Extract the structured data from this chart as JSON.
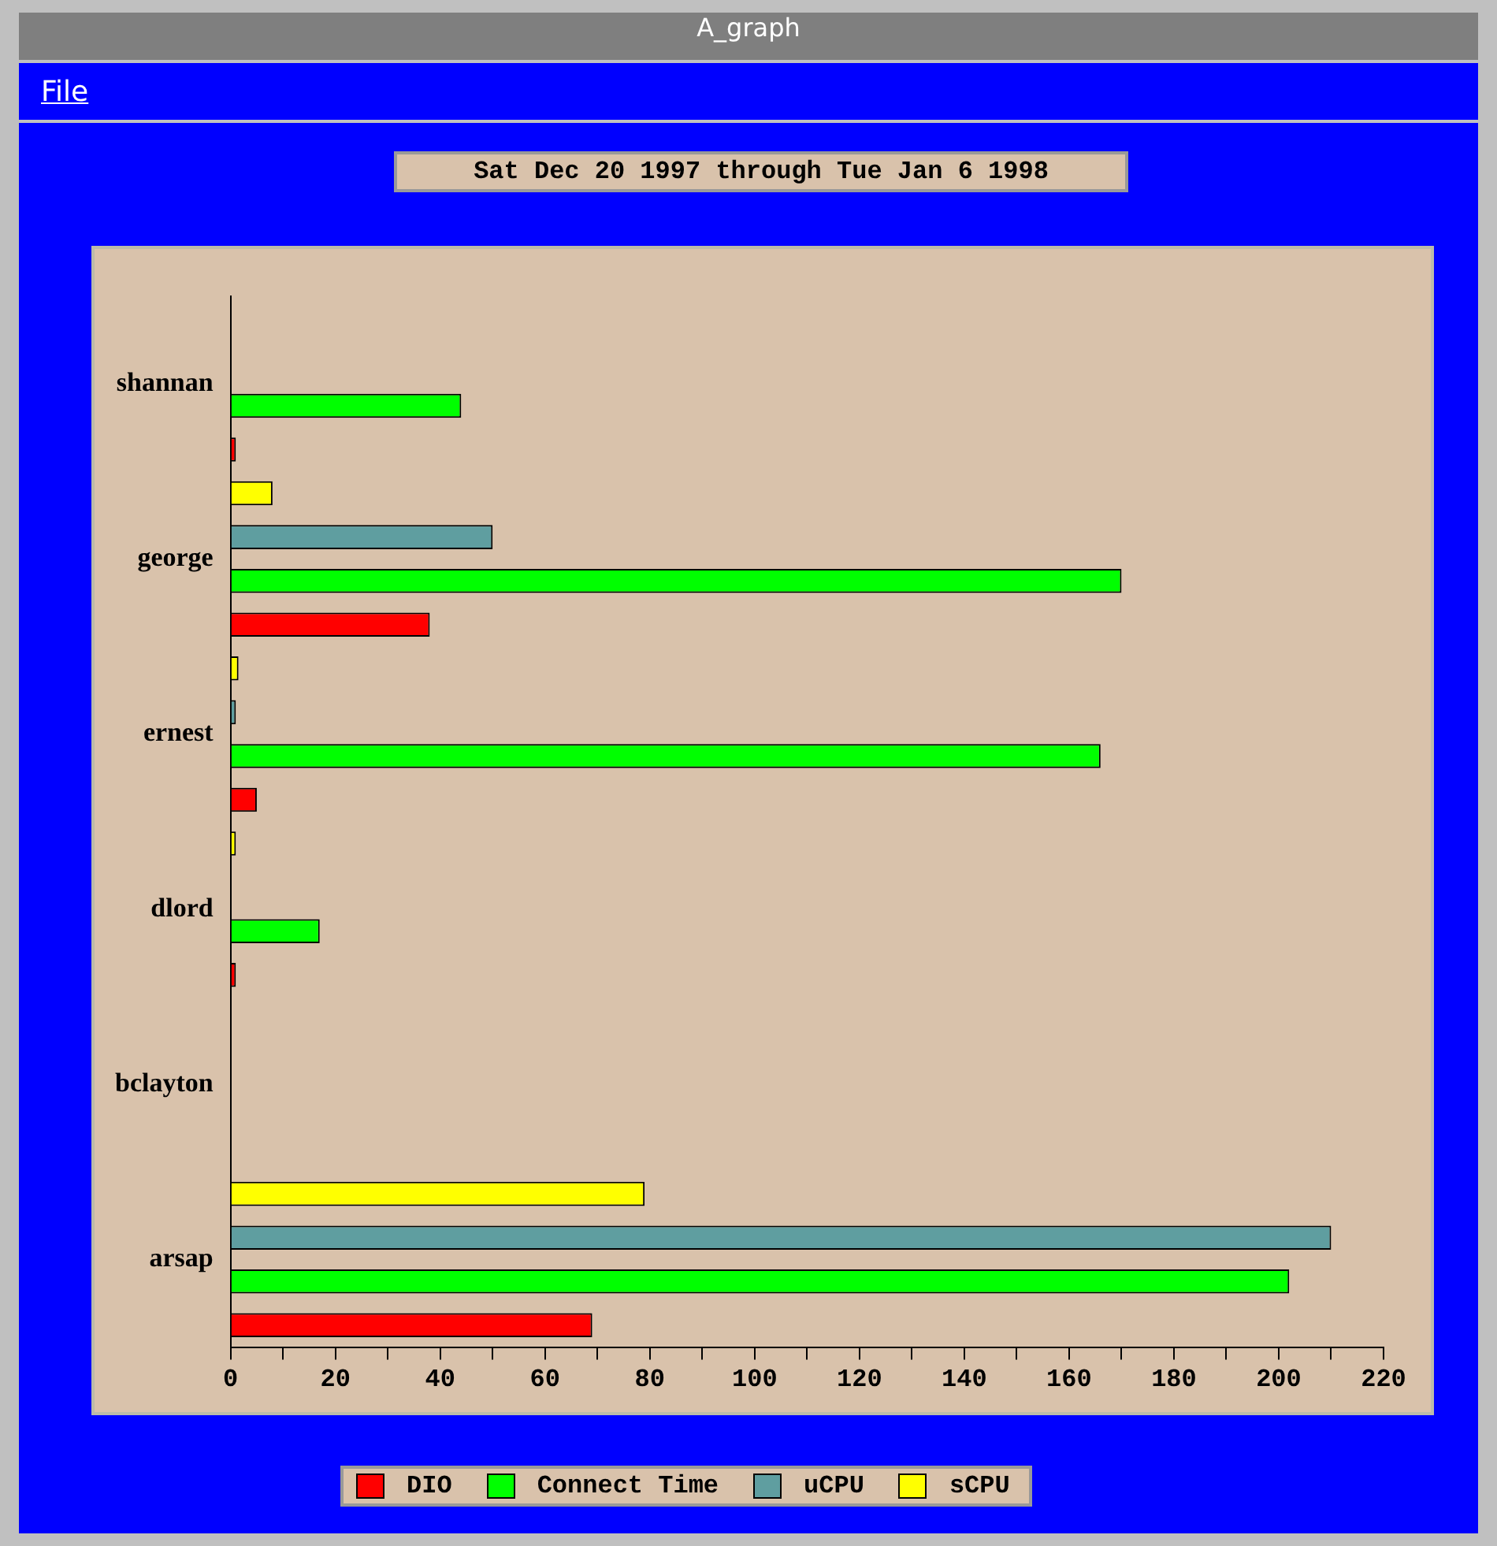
{
  "chart_data": {
    "type": "bar",
    "orientation": "horizontal",
    "title": "Sat Dec 20 1997 through Tue Jan  6 1998",
    "annotations": [
      "A_graph",
      "File"
    ],
    "categories": [
      "shannan",
      "george",
      "ernest",
      "dlord",
      "bclayton",
      "arsap"
    ],
    "series": [
      {
        "name": "DIO",
        "color": "#ff0000",
        "values": [
          1,
          38,
          5,
          1,
          0,
          69
        ]
      },
      {
        "name": "Connect Time",
        "color": "#00ff00",
        "values": [
          44,
          170,
          166,
          17,
          0,
          202
        ]
      },
      {
        "name": "uCPU",
        "color": "#5f9ea0",
        "values": [
          0,
          50,
          1,
          0,
          0,
          210
        ]
      },
      {
        "name": "sCPU",
        "color": "#ffff00",
        "values": [
          0,
          8,
          1.5,
          1,
          0,
          79
        ]
      }
    ],
    "xlim": [
      0,
      220
    ],
    "xticks": [
      0,
      {
        "value": 10,
        "label": null
      },
      20,
      {
        "value": 30,
        "label": null
      },
      40,
      {
        "value": 50,
        "label": null
      },
      60,
      {
        "value": 70,
        "label": null
      },
      80,
      {
        "value": 90,
        "label": null
      },
      100,
      {
        "value": 110,
        "label": null
      },
      120,
      {
        "value": 130,
        "label": null
      },
      140,
      {
        "value": 150,
        "label": null
      },
      160,
      {
        "value": 170,
        "label": null
      },
      180,
      {
        "value": 190,
        "label": null
      },
      200,
      {
        "value": 210,
        "label": null
      },
      220
    ],
    "grid": false,
    "legend": "bottom"
  }
}
